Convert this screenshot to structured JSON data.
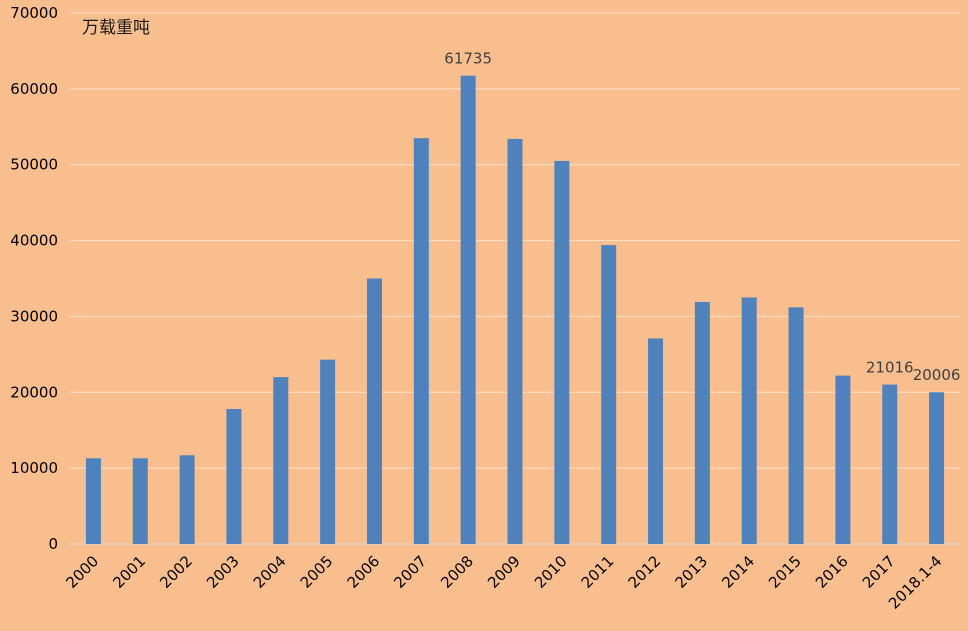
{
  "chart_data": {
    "type": "bar",
    "unit_label": "万载重吨",
    "categories": [
      "2000",
      "2001",
      "2002",
      "2003",
      "2004",
      "2005",
      "2006",
      "2007",
      "2008",
      "2009",
      "2010",
      "2011",
      "2012",
      "2013",
      "2014",
      "2015",
      "2016",
      "2017",
      "2018.1-4"
    ],
    "values": [
      11300,
      11300,
      11700,
      17800,
      22000,
      24300,
      35000,
      53500,
      61735,
      53400,
      50500,
      39400,
      27100,
      31900,
      32500,
      31200,
      22200,
      21016,
      20006
    ],
    "data_labels": {
      "8": "61735",
      "17": "21016",
      "18": "20006"
    },
    "ylim": [
      0,
      70000
    ],
    "yticks": [
      0,
      10000,
      20000,
      30000,
      40000,
      50000,
      60000,
      70000
    ],
    "grid": true,
    "colors": {
      "bar": "#4F81BD",
      "background": "#F9BE8E",
      "grid": "#FDE0C8"
    }
  }
}
